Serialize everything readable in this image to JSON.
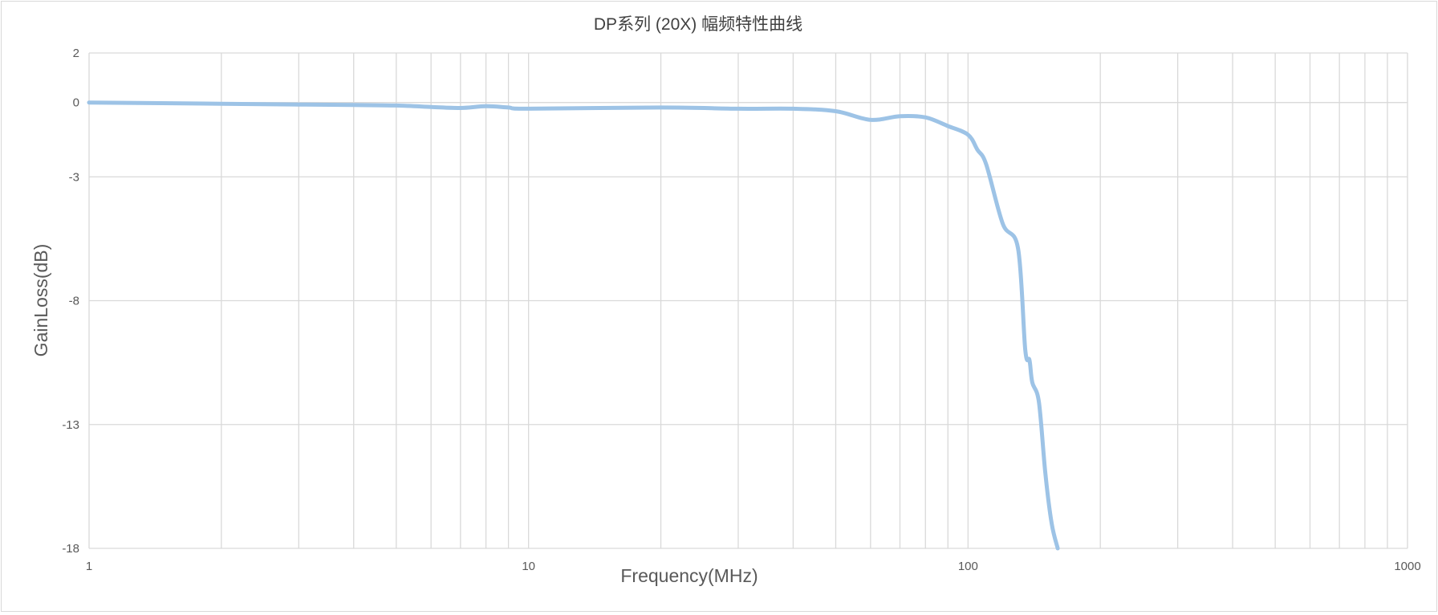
{
  "chart_data": {
    "type": "line",
    "title": "DP系列 (20X) 幅频特性曲线",
    "xlabel": "Frequency(MHz)",
    "ylabel": "GainLoss(dB)",
    "x_scale": "log",
    "xlim": [
      1,
      1000
    ],
    "ylim": [
      -18,
      2
    ],
    "x_ticks": [
      1,
      10,
      100,
      1000
    ],
    "x_tick_labels": [
      "1",
      "10",
      "100",
      "1000"
    ],
    "y_ticks": [
      2,
      0,
      -3,
      -8,
      -13,
      -18
    ],
    "y_tick_labels": [
      "2",
      "0",
      "-3",
      "-8",
      "-13",
      "-18"
    ],
    "grid": true,
    "legend": "none",
    "colors": {
      "series": "#9dc3e6",
      "grid": "#d9d9d9",
      "text": "#595959"
    },
    "series": [
      {
        "x": [
          1,
          2,
          3,
          4,
          5,
          6,
          7,
          8,
          9,
          10,
          20,
          30,
          40,
          50,
          60,
          70,
          80,
          90,
          100,
          105,
          110,
          120,
          130,
          135,
          138,
          140,
          145,
          150,
          155,
          160
        ],
        "y": [
          0,
          -0.05,
          -0.08,
          -0.1,
          -0.12,
          -0.18,
          -0.22,
          -0.15,
          -0.2,
          -0.25,
          -0.2,
          -0.25,
          -0.25,
          -0.35,
          -0.7,
          -0.55,
          -0.6,
          -0.95,
          -1.3,
          -1.9,
          -2.5,
          -4.9,
          -5.9,
          -10,
          -10.4,
          -11.3,
          -12.1,
          -15,
          -17,
          -18
        ]
      }
    ]
  }
}
